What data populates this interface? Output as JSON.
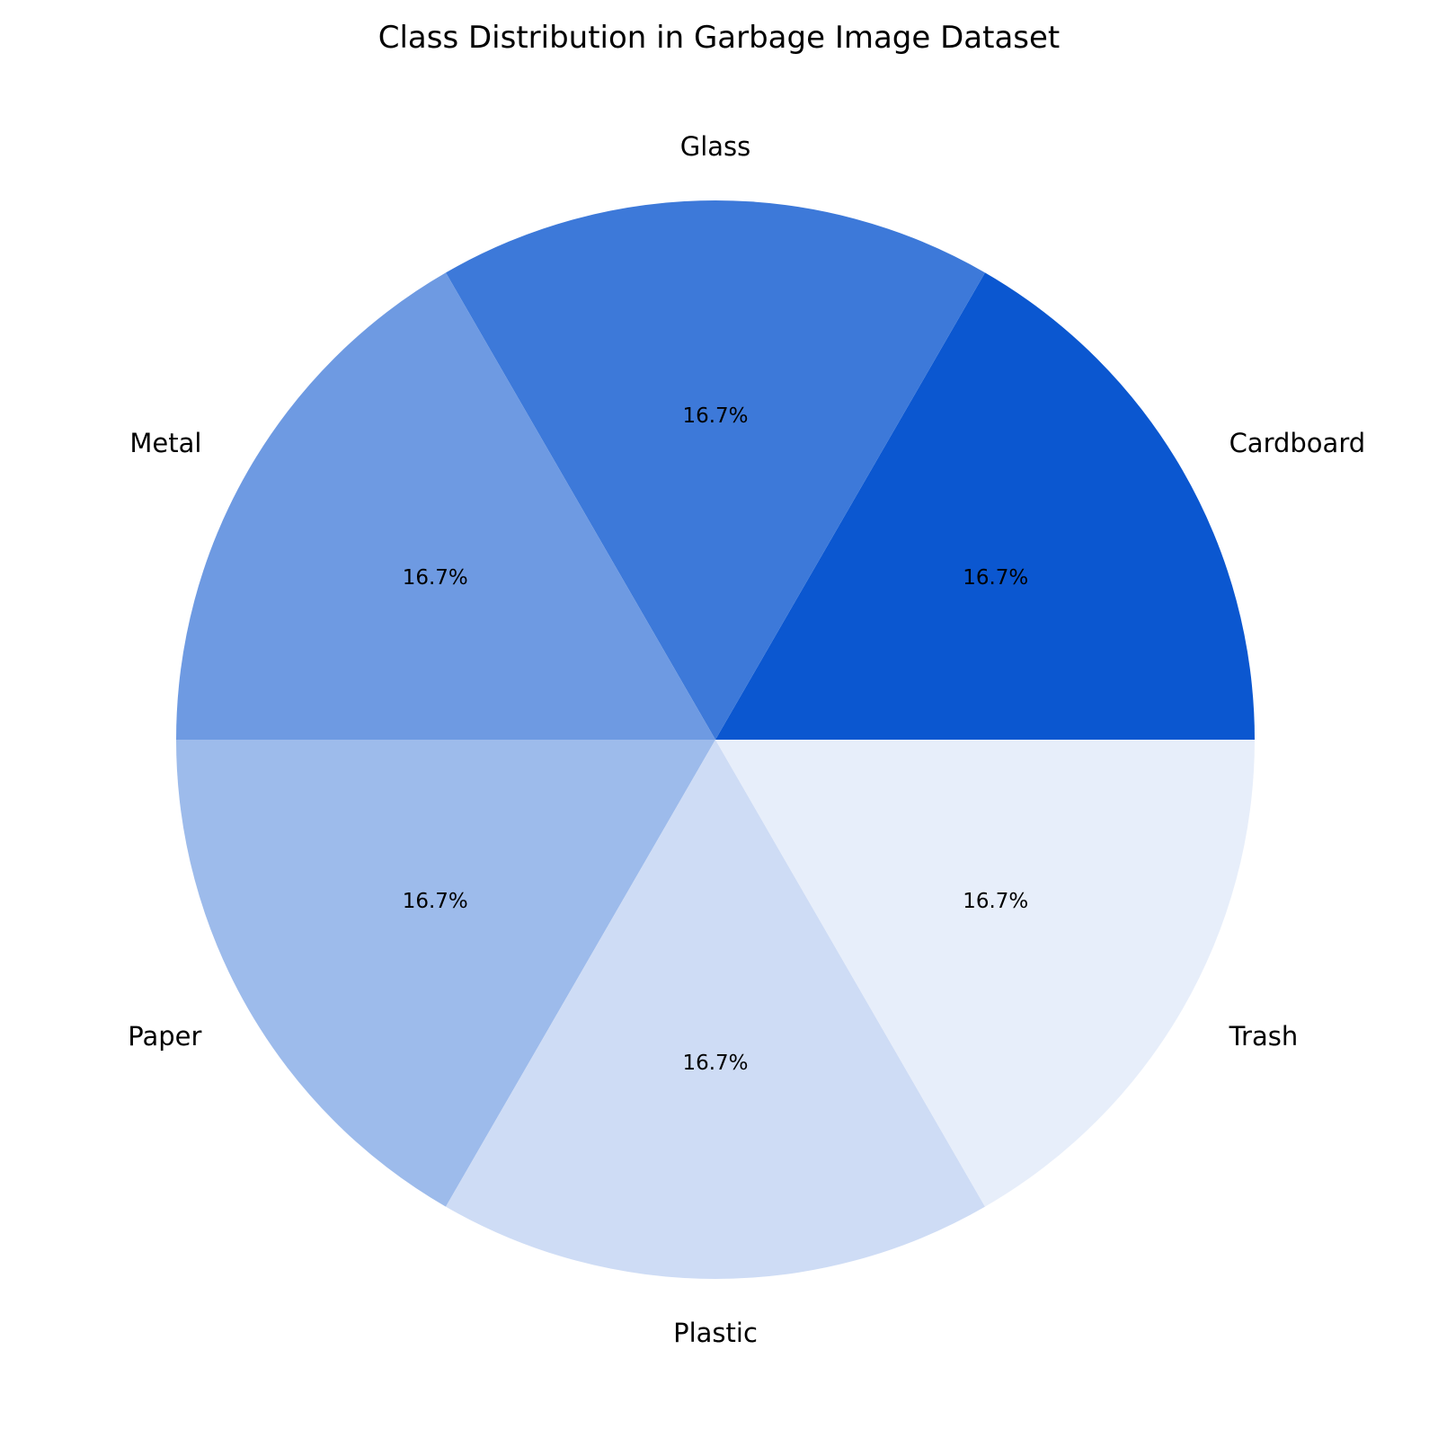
{
  "chart_data": {
    "type": "pie",
    "title": "Class Distribution in Garbage Image Dataset",
    "start_angle_deg": 0,
    "direction": "counterclockwise",
    "slices": [
      {
        "label": "Cardboard",
        "value": 1,
        "pct_label": "16.7%",
        "color": "#0b57d0"
      },
      {
        "label": "Glass",
        "value": 1,
        "pct_label": "16.7%",
        "color": "#3d79d9"
      },
      {
        "label": "Metal",
        "value": 1,
        "pct_label": "16.7%",
        "color": "#6e9ae2"
      },
      {
        "label": "Paper",
        "value": 1,
        "pct_label": "16.7%",
        "color": "#9dbbeb"
      },
      {
        "label": "Plastic",
        "value": 1,
        "pct_label": "16.7%",
        "color": "#cedcf5"
      },
      {
        "label": "Trash",
        "value": 1,
        "pct_label": "16.7%",
        "color": "#e7eefa"
      }
    ]
  }
}
